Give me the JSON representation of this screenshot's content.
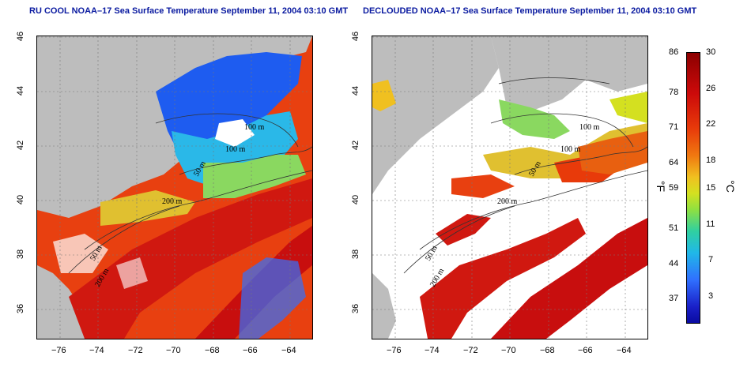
{
  "panels": [
    {
      "title": "RU COOL NOAA–17 Sea Surface Temperature September 11, 2004 03:10 GMT"
    },
    {
      "title": "DECLOUDED NOAA–17 Sea Surface Temperature September 11, 2004 03:10 GMT"
    }
  ],
  "axes": {
    "x_ticks": [
      "−76",
      "−74",
      "−72",
      "−70",
      "−68",
      "−66",
      "−64"
    ],
    "y_ticks": [
      "46",
      "44",
      "42",
      "40",
      "38",
      "36"
    ]
  },
  "contours": {
    "left": [
      "100 m",
      "100 m",
      "50 m",
      "200 m",
      "50 m",
      "200 m"
    ],
    "right": [
      "100 m",
      "100 m",
      "50 m",
      "200 m",
      "50 m",
      "200 m"
    ]
  },
  "colorbar": {
    "fahrenheit_unit": "°F",
    "celsius_unit": "°C",
    "fahrenheit_ticks": [
      "86",
      "78",
      "71",
      "64",
      "59",
      "51",
      "44",
      "37"
    ],
    "celsius_ticks": [
      "30",
      "26",
      "22",
      "18",
      "15",
      "11",
      "7",
      "3"
    ]
  }
}
